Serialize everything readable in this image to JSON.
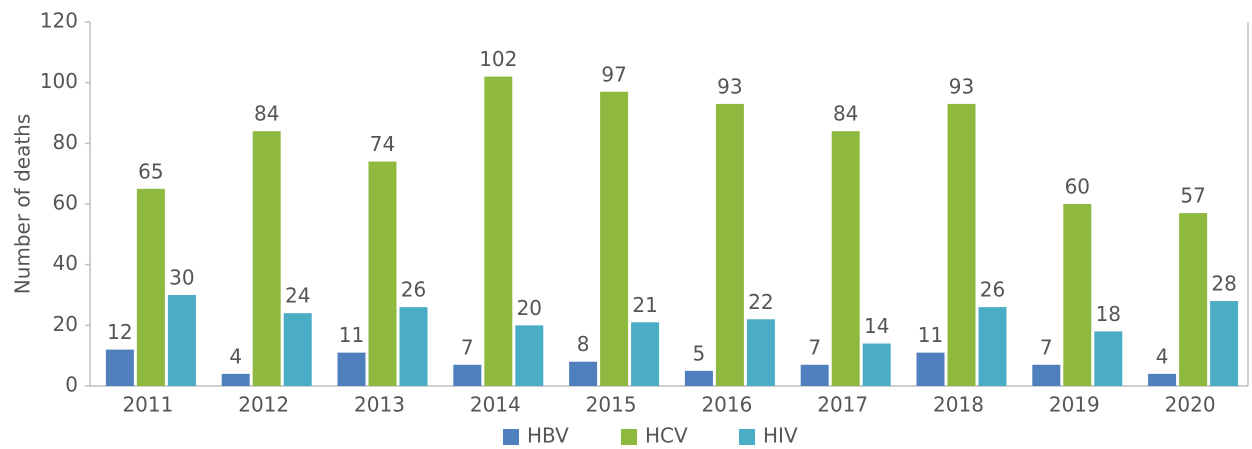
{
  "chart_data": {
    "type": "bar",
    "y_label": "Number of deaths",
    "categories": [
      "2011",
      "2012",
      "2013",
      "2014",
      "2015",
      "2016",
      "2017",
      "2018",
      "2019",
      "2020"
    ],
    "series": [
      {
        "name": "HBV",
        "color": "#4f7fbd",
        "values": [
          12,
          4,
          11,
          7,
          8,
          5,
          7,
          11,
          7,
          4
        ]
      },
      {
        "name": "HCV",
        "color": "#8fb83f",
        "values": [
          65,
          84,
          74,
          102,
          97,
          93,
          84,
          93,
          60,
          57
        ]
      },
      {
        "name": "HIV",
        "color": "#4aacc5",
        "values": [
          30,
          24,
          26,
          20,
          21,
          22,
          14,
          26,
          18,
          28
        ]
      }
    ],
    "ylim": [
      0,
      120
    ],
    "yticks": [
      0,
      20,
      40,
      60,
      80,
      100,
      120
    ],
    "grid": false,
    "legend": "bottom"
  }
}
